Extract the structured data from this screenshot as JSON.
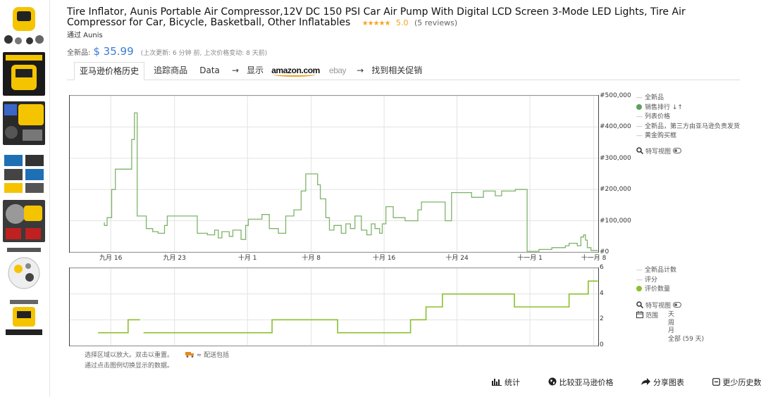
{
  "product": {
    "title": "Tire Inflator, Aunis Portable Air Compressor,12V DC 150 PSI Car Air Pump With Digital LCD Screen 3-Mode LED Lights, Tire Air Compressor for Car, Bicycle, Basketball, Other Inflatables",
    "stars": "★★★★★",
    "rating": "5.0",
    "reviews": "(5 reviews)",
    "seller": "通过 Aunis"
  },
  "pricebar": {
    "label": "全新品:",
    "price": "$ 35.99",
    "update_note": "(上次更新: 6 分钟 前, 上次价格变动: 8 天前)"
  },
  "tabs": {
    "history": "亚马逊价格历史",
    "track": "追踪商品",
    "data": "Data",
    "arrow1": "→",
    "show": "显示",
    "amazon": "amazon.com",
    "ebay": "ebay",
    "arrow2": "→",
    "deals": "找到相关促销"
  },
  "colors": {
    "accent": "#3a7bd5",
    "series_green": "#7fb36a",
    "count_green": "#8bbf2f"
  },
  "legend_top": {
    "new": "全新品",
    "sales_rank": "销售排行",
    "sort_icon": "↓↑",
    "list_price": "列表价格",
    "new_third_party": "全新品，第三方由亚马逊负责发货",
    "buy_box": "黄金购买框",
    "close_up": "特写视图"
  },
  "legend_bottom": {
    "new_count": "全新品计数",
    "rating": "评分",
    "review_count": "评价数量",
    "close_up": "特写视图",
    "range": "范围",
    "range_day": "天",
    "range_week": "周",
    "range_month": "月",
    "range_all": "全部 (59 天)"
  },
  "hint": {
    "line1": "选择区域以放大。双击以重置。",
    "line2": "通过点击图例切换显示的数据。",
    "truck_note": "≈ 配送包括"
  },
  "footer": {
    "stats": "统计",
    "compare": "比较亚马逊价格",
    "share": "分享图表",
    "less_history": "更少历史数据"
  },
  "chart_data": [
    {
      "type": "line",
      "series": [
        {
          "name": "销售排行"
        }
      ],
      "x_ticks": [
        {
          "day": 4,
          "label": "九月 16"
        },
        {
          "day": 11,
          "label": "九月 23"
        },
        {
          "day": 19,
          "label": "十月 1"
        },
        {
          "day": 26,
          "label": "十月 8"
        },
        {
          "day": 34,
          "label": "十月 16"
        },
        {
          "day": 42,
          "label": "十月 24"
        },
        {
          "day": 50,
          "label": "十一月 1"
        },
        {
          "day": 57,
          "label": "十一月 8"
        }
      ],
      "y_ticks": [
        "#500,000",
        "#400,000",
        "#300,000",
        "#200,000",
        "#100,000",
        "#0"
      ],
      "ylim": [
        0,
        500000
      ],
      "xlim": [
        -0.5,
        57.5
      ],
      "grid": true,
      "points": [
        [
          3.3,
          95000
        ],
        [
          3.3,
          85000
        ],
        [
          3.6,
          85000
        ],
        [
          3.6,
          110000
        ],
        [
          4.1,
          110000
        ],
        [
          4.1,
          200000
        ],
        [
          4.5,
          200000
        ],
        [
          4.5,
          265000
        ],
        [
          6.3,
          265000
        ],
        [
          6.3,
          360000
        ],
        [
          6.6,
          360000
        ],
        [
          6.6,
          445000
        ],
        [
          6.9,
          445000
        ],
        [
          6.9,
          115000
        ],
        [
          7.9,
          115000
        ],
        [
          7.9,
          75000
        ],
        [
          8.6,
          75000
        ],
        [
          8.6,
          65000
        ],
        [
          9.2,
          65000
        ],
        [
          9.2,
          60000
        ],
        [
          9.9,
          60000
        ],
        [
          9.9,
          85000
        ],
        [
          10.2,
          85000
        ],
        [
          10.2,
          115000
        ],
        [
          13.5,
          115000
        ],
        [
          13.5,
          60000
        ],
        [
          14.6,
          60000
        ],
        [
          14.6,
          55000
        ],
        [
          15.4,
          55000
        ],
        [
          15.4,
          70000
        ],
        [
          15.8,
          70000
        ],
        [
          15.8,
          45000
        ],
        [
          16.2,
          45000
        ],
        [
          16.2,
          65000
        ],
        [
          17.0,
          65000
        ],
        [
          17.0,
          50000
        ],
        [
          17.4,
          50000
        ],
        [
          17.4,
          70000
        ],
        [
          18.3,
          70000
        ],
        [
          18.3,
          40000
        ],
        [
          18.8,
          40000
        ],
        [
          18.8,
          85000
        ],
        [
          19.1,
          85000
        ],
        [
          19.1,
          105000
        ],
        [
          20.6,
          105000
        ],
        [
          20.6,
          120000
        ],
        [
          21.4,
          120000
        ],
        [
          21.4,
          75000
        ],
        [
          22.4,
          75000
        ],
        [
          22.4,
          60000
        ],
        [
          23.2,
          60000
        ],
        [
          23.2,
          115000
        ],
        [
          24.1,
          115000
        ],
        [
          24.1,
          135000
        ],
        [
          24.9,
          135000
        ],
        [
          24.9,
          195000
        ],
        [
          25.4,
          195000
        ],
        [
          25.4,
          250000
        ],
        [
          26.7,
          250000
        ],
        [
          26.7,
          215000
        ],
        [
          27.0,
          215000
        ],
        [
          27.0,
          170000
        ],
        [
          27.6,
          170000
        ],
        [
          27.6,
          110000
        ],
        [
          28.0,
          110000
        ],
        [
          28.0,
          70000
        ],
        [
          28.5,
          70000
        ],
        [
          28.5,
          85000
        ],
        [
          29.3,
          85000
        ],
        [
          29.3,
          60000
        ],
        [
          29.8,
          60000
        ],
        [
          29.8,
          90000
        ],
        [
          30.3,
          90000
        ],
        [
          30.3,
          75000
        ],
        [
          30.8,
          75000
        ],
        [
          30.8,
          115000
        ],
        [
          31.5,
          115000
        ],
        [
          31.5,
          70000
        ],
        [
          32.1,
          70000
        ],
        [
          32.1,
          55000
        ],
        [
          32.6,
          55000
        ],
        [
          32.6,
          90000
        ],
        [
          33.0,
          90000
        ],
        [
          33.0,
          75000
        ],
        [
          33.5,
          75000
        ],
        [
          33.5,
          60000
        ],
        [
          33.8,
          60000
        ],
        [
          33.8,
          90000
        ],
        [
          34.2,
          90000
        ],
        [
          34.2,
          145000
        ],
        [
          35.0,
          145000
        ],
        [
          35.0,
          110000
        ],
        [
          36.3,
          110000
        ],
        [
          36.3,
          100000
        ],
        [
          37.7,
          100000
        ],
        [
          37.7,
          135000
        ],
        [
          38.1,
          135000
        ],
        [
          38.1,
          160000
        ],
        [
          40.7,
          160000
        ],
        [
          40.7,
          100000
        ],
        [
          41.4,
          100000
        ],
        [
          41.4,
          190000
        ],
        [
          43.6,
          190000
        ],
        [
          43.6,
          175000
        ],
        [
          44.9,
          175000
        ],
        [
          44.9,
          195000
        ],
        [
          46.2,
          195000
        ],
        [
          46.2,
          180000
        ],
        [
          46.9,
          180000
        ],
        [
          46.9,
          195000
        ],
        [
          48.1,
          195000
        ],
        [
          48.1,
          195000
        ],
        [
          48.4,
          195000
        ],
        [
          48.4,
          200000
        ],
        [
          49.7,
          200000
        ],
        [
          49.7,
          2000
        ],
        [
          51.0,
          2000
        ],
        [
          51.0,
          8000
        ],
        [
          52.4,
          8000
        ],
        [
          52.4,
          14000
        ],
        [
          53.9,
          14000
        ],
        [
          53.9,
          20000
        ],
        [
          54.3,
          20000
        ],
        [
          54.3,
          28000
        ],
        [
          55.2,
          28000
        ],
        [
          55.2,
          20000
        ],
        [
          55.6,
          20000
        ],
        [
          55.6,
          48000
        ],
        [
          55.9,
          48000
        ],
        [
          55.9,
          55000
        ],
        [
          56.1,
          55000
        ],
        [
          56.1,
          38000
        ],
        [
          56.3,
          38000
        ],
        [
          56.3,
          14000
        ],
        [
          56.7,
          14000
        ],
        [
          56.7,
          5000
        ],
        [
          57.5,
          5000
        ]
      ]
    },
    {
      "type": "line",
      "series": [
        {
          "name": "评价数量"
        }
      ],
      "x_ticks": [
        {
          "day": 4,
          "label": ""
        },
        {
          "day": 11,
          "label": ""
        },
        {
          "day": 19,
          "label": ""
        },
        {
          "day": 26,
          "label": ""
        },
        {
          "day": 34,
          "label": ""
        },
        {
          "day": 42,
          "label": ""
        },
        {
          "day": 50,
          "label": ""
        },
        {
          "day": 57,
          "label": ""
        }
      ],
      "y_ticks": [
        "6",
        "4",
        "2",
        "0"
      ],
      "ylim": [
        0,
        6
      ],
      "xlim": [
        -0.5,
        57.5
      ],
      "grid": true,
      "points": [
        [
          2.6,
          1
        ],
        [
          5.9,
          1
        ],
        [
          5.9,
          2
        ],
        [
          7.2,
          2
        ],
        [
          null,
          null
        ],
        [
          7.6,
          1
        ],
        [
          14.2,
          1
        ],
        [
          18.4,
          1
        ],
        [
          21.7,
          1
        ],
        [
          21.7,
          2
        ],
        [
          28.9,
          2
        ],
        [
          28.9,
          1
        ],
        [
          36.9,
          1
        ],
        [
          36.9,
          2
        ],
        [
          38.6,
          2
        ],
        [
          38.6,
          3
        ],
        [
          40.4,
          3
        ],
        [
          40.4,
          4
        ],
        [
          48.3,
          4
        ],
        [
          48.3,
          3
        ],
        [
          54.3,
          3
        ],
        [
          54.3,
          4
        ],
        [
          56.4,
          4
        ],
        [
          56.4,
          5
        ],
        [
          58.0,
          5
        ]
      ]
    }
  ]
}
